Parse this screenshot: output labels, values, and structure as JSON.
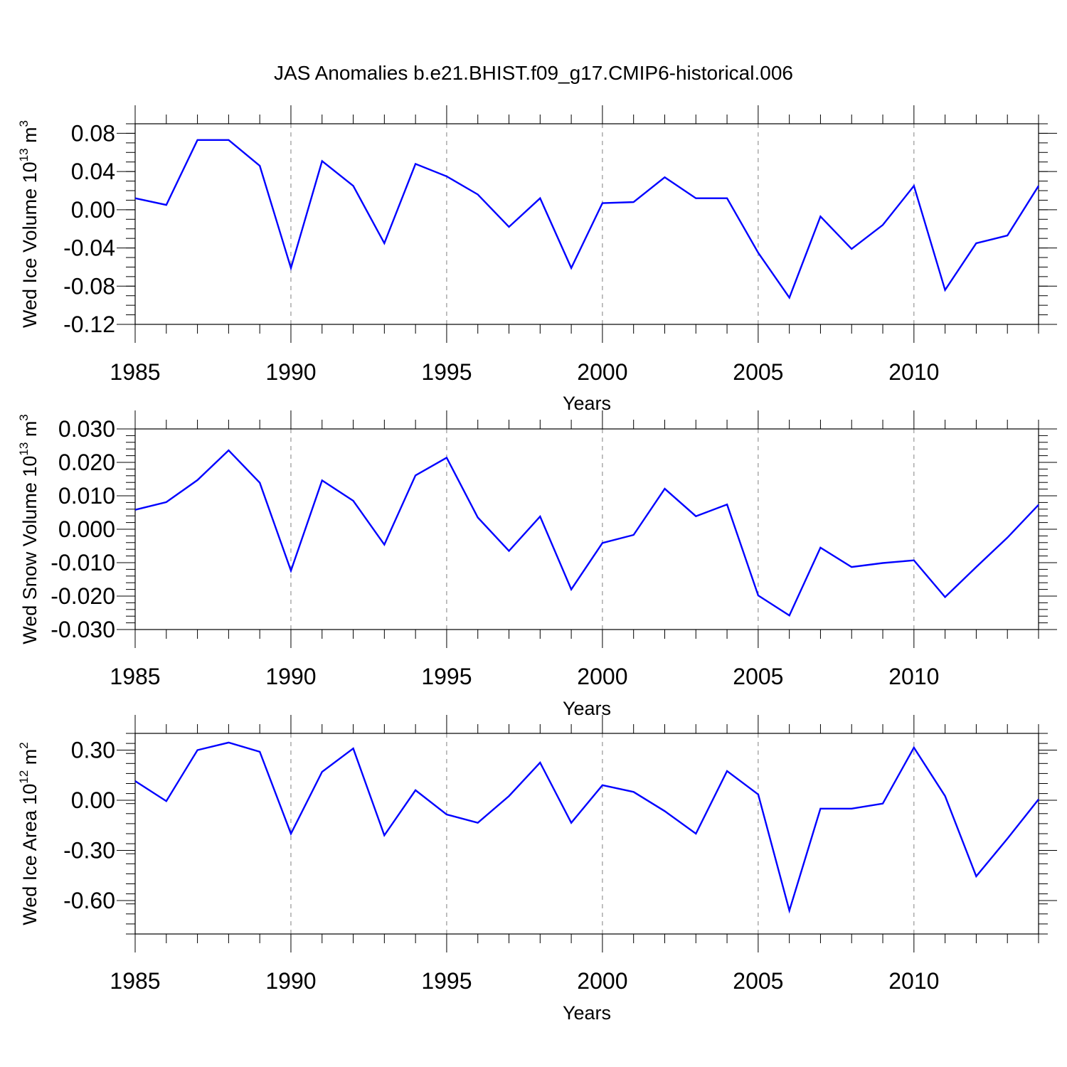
{
  "figure_title": "JAS Anomalies b.e21.BHIST.f09_g17.CMIP6-historical.006",
  "colors": {
    "series": "#0000ff",
    "axis": "#000000",
    "grid": "#808080"
  },
  "chart_data": [
    {
      "type": "line",
      "title": "JAS Anomalies b.e21.BHIST.f09_g17.CMIP6-historical.006",
      "xlabel": "Years",
      "ylabel_prefix": "Wed Ice Volume 10",
      "ylabel_exp": "13",
      "ylabel_unit": " m",
      "ylabel_unit_exp": "3",
      "xlim": [
        1985,
        2014
      ],
      "ylim": [
        -0.12,
        0.09
      ],
      "xticks": [
        1985,
        1990,
        1995,
        2000,
        2005,
        2010
      ],
      "xtick_labels": [
        "1985",
        "1990",
        "1995",
        "2000",
        "2005",
        "2010"
      ],
      "yticks": [
        -0.12,
        -0.08,
        -0.04,
        0.0,
        0.04,
        0.08
      ],
      "ytick_labels": [
        "-0.12",
        "-0.08",
        "-0.04",
        "0.00",
        "0.04",
        "0.08"
      ],
      "yminor_step": 0.01,
      "grid_x": true,
      "x": [
        1985,
        1986,
        1987,
        1988,
        1989,
        1990,
        1991,
        1992,
        1993,
        1994,
        1995,
        1996,
        1997,
        1998,
        1999,
        2000,
        2001,
        2002,
        2003,
        2004,
        2005,
        2006,
        2007,
        2008,
        2009,
        2010,
        2011,
        2012,
        2013,
        2014
      ],
      "series": [
        {
          "name": "Wed Ice Volume",
          "values": [
            0.012,
            0.005,
            0.073,
            0.073,
            0.046,
            -0.061,
            0.051,
            0.025,
            -0.035,
            0.048,
            0.035,
            0.016,
            -0.018,
            0.012,
            -0.061,
            0.007,
            0.008,
            0.034,
            0.012,
            0.012,
            -0.045,
            -0.092,
            -0.007,
            -0.041,
            -0.016,
            0.025,
            -0.084,
            -0.035,
            -0.027,
            0.025
          ]
        }
      ]
    },
    {
      "type": "line",
      "xlabel": "Years",
      "ylabel_prefix": "Wed Snow Volume 10",
      "ylabel_exp": "13",
      "ylabel_unit": " m",
      "ylabel_unit_exp": "3",
      "xlim": [
        1985,
        2014
      ],
      "ylim": [
        -0.03,
        0.03
      ],
      "xticks": [
        1985,
        1990,
        1995,
        2000,
        2005,
        2010
      ],
      "xtick_labels": [
        "1985",
        "1990",
        "1995",
        "2000",
        "2005",
        "2010"
      ],
      "yticks": [
        -0.03,
        -0.02,
        -0.01,
        0.0,
        0.01,
        0.02,
        0.03
      ],
      "ytick_labels": [
        "-0.030",
        "-0.020",
        "-0.010",
        "0.000",
        "0.010",
        "0.020",
        "0.030"
      ],
      "yminor_step": 0.002,
      "grid_x": true,
      "x": [
        1985,
        1986,
        1987,
        1988,
        1989,
        1990,
        1991,
        1992,
        1993,
        1994,
        1995,
        1996,
        1997,
        1998,
        1999,
        2000,
        2001,
        2002,
        2003,
        2004,
        2005,
        2006,
        2007,
        2008,
        2009,
        2010,
        2011,
        2012,
        2013,
        2014
      ],
      "series": [
        {
          "name": "Wed Snow Volume",
          "values": [
            0.0058,
            0.0081,
            0.0147,
            0.0236,
            0.0139,
            -0.0124,
            0.0146,
            0.0085,
            -0.0046,
            0.0161,
            0.0214,
            0.0035,
            -0.0065,
            0.0038,
            -0.018,
            -0.0041,
            -0.0017,
            0.0121,
            0.0039,
            0.0074,
            -0.0198,
            -0.0258,
            -0.0055,
            -0.0113,
            -0.0101,
            -0.0093,
            -0.0203,
            -0.0113,
            -0.0025,
            0.0073
          ]
        }
      ]
    },
    {
      "type": "line",
      "xlabel": "Years",
      "ylabel_prefix": "Wed Ice Area 10",
      "ylabel_exp": "12",
      "ylabel_unit": " m",
      "ylabel_unit_exp": "2",
      "xlim": [
        1985,
        2014
      ],
      "ylim": [
        -0.8,
        0.4
      ],
      "xticks": [
        1985,
        1990,
        1995,
        2000,
        2005,
        2010
      ],
      "xtick_labels": [
        "1985",
        "1990",
        "1995",
        "2000",
        "2005",
        "2010"
      ],
      "yticks": [
        -0.6,
        -0.3,
        0.0,
        0.3
      ],
      "ytick_labels": [
        "-0.60",
        "-0.30",
        "0.00",
        "0.30"
      ],
      "yminor_step": 0.06,
      "grid_x": true,
      "x": [
        1985,
        1986,
        1987,
        1988,
        1989,
        1990,
        1991,
        1992,
        1993,
        1994,
        1995,
        1996,
        1997,
        1998,
        1999,
        2000,
        2001,
        2002,
        2003,
        2004,
        2005,
        2006,
        2007,
        2008,
        2009,
        2010,
        2011,
        2012,
        2013,
        2014
      ],
      "series": [
        {
          "name": "Wed Ice Area",
          "values": [
            0.115,
            -0.005,
            0.3,
            0.345,
            0.29,
            -0.2,
            0.17,
            0.31,
            -0.21,
            0.06,
            -0.085,
            -0.135,
            0.025,
            0.225,
            -0.135,
            0.09,
            0.05,
            -0.065,
            -0.2,
            0.175,
            0.035,
            -0.66,
            -0.05,
            -0.05,
            -0.02,
            0.315,
            0.025,
            -0.455,
            -0.23,
            0.005
          ]
        }
      ]
    }
  ]
}
